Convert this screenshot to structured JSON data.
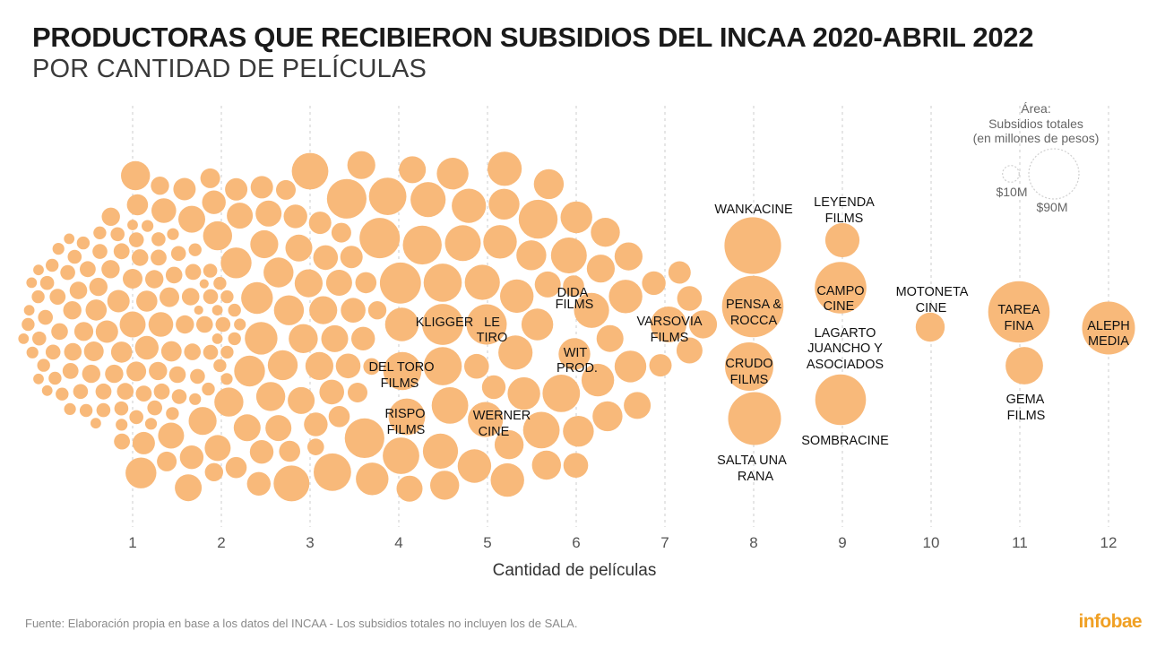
{
  "header": {
    "title": "PRODUCTORAS QUE RECIBIERON SUBSIDIOS DEL INCAA 2020-ABRIL 2022",
    "subtitle": "POR CANTIDAD DE PELÍCULAS"
  },
  "footer": {
    "source": "Fuente: Elaboración propia en base a los datos del INCAA - Los subsidios totales no incluyen los de SALA.",
    "brand": "infobae"
  },
  "colors": {
    "bubble": "#f8b97a",
    "grid": "#cccccc",
    "legend": "#cfcfcf"
  },
  "legend": {
    "title_lines": [
      "Área:",
      "Subsidios totales",
      "(en millones de pesos)"
    ],
    "items": [
      {
        "label": "$10M",
        "value": 10
      },
      {
        "label": "$90M",
        "value": 90
      }
    ]
  },
  "chart_data": {
    "type": "bubble-swarm",
    "xlabel": "Cantidad de películas",
    "x_ticks": [
      1,
      2,
      3,
      4,
      5,
      6,
      7,
      8,
      9,
      10,
      11,
      12
    ],
    "size_measure": "Subsidios totales (en millones de pesos)",
    "named_producers": [
      {
        "name": "KLIGGER",
        "films": 4,
        "subsidy_m": 60
      },
      {
        "name": "DEL TORO FILMS",
        "films": 4,
        "subsidy_m": 52
      },
      {
        "name": "RISPO FILMS",
        "films": 4,
        "subsidy_m": 48
      },
      {
        "name": "LE TIRO",
        "films": 5,
        "subsidy_m": 58
      },
      {
        "name": "WERNER CINE",
        "films": 5,
        "subsidy_m": 20
      },
      {
        "name": "DIDA FILMS",
        "films": 6,
        "subsidy_m": 16
      },
      {
        "name": "WIT PROD.",
        "films": 6,
        "subsidy_m": 36
      },
      {
        "name": "VARSOVIA FILMS",
        "films": 7,
        "subsidy_m": 46
      },
      {
        "name": "WANKACINE",
        "films": 8,
        "subsidy_m": 115
      },
      {
        "name": "PENSA & ROCCA",
        "films": 8,
        "subsidy_m": 135
      },
      {
        "name": "CRUDO FILMS",
        "films": 8,
        "subsidy_m": 84
      },
      {
        "name": "SALTA UNA RANA",
        "films": 8,
        "subsidy_m": 100
      },
      {
        "name": "LEYENDA FILMS",
        "films": 9,
        "subsidy_m": 42
      },
      {
        "name": "CAMPO CINE",
        "films": 9,
        "subsidy_m": 95
      },
      {
        "name": "LAGARTO JUANCHO Y ASOCIADOS",
        "films": 9,
        "subsidy_m": 0
      },
      {
        "name": "SOMBRACINE",
        "films": 9,
        "subsidy_m": 92
      },
      {
        "name": "MOTONETA CINE",
        "films": 10,
        "subsidy_m": 30
      },
      {
        "name": "TAREA FINA",
        "films": 11,
        "subsidy_m": 135
      },
      {
        "name": "GEMA FILMS",
        "films": 11,
        "subsidy_m": 50
      },
      {
        "name": "ALEPH MEDIA",
        "films": 12,
        "subsidy_m": 100
      }
    ],
    "swarm_bubbles": [
      {
        "films": 1,
        "subsidy_m": [
          8,
          4,
          4,
          6,
          12,
          7,
          4,
          9,
          5,
          5,
          10,
          4,
          6,
          6,
          3,
          8,
          4,
          6,
          5,
          12,
          6,
          8,
          7,
          9,
          4,
          6,
          3,
          5,
          6,
          10,
          4,
          6,
          5,
          8,
          14,
          6,
          4,
          7,
          16,
          5,
          9,
          6,
          8,
          4,
          6,
          10,
          5,
          7,
          12,
          6,
          4,
          9,
          5,
          6,
          8,
          11,
          5,
          7,
          6,
          9,
          4,
          8,
          12,
          6,
          8,
          16,
          5,
          7,
          6,
          10,
          8,
          12,
          6,
          18,
          9,
          7,
          14,
          8,
          10,
          6,
          12,
          9,
          7,
          15,
          8,
          11,
          9,
          13,
          20,
          10,
          7,
          14,
          8,
          16,
          11,
          9,
          22,
          12,
          8,
          18,
          14,
          10,
          24,
          12
        ]
      },
      {
        "films": 2,
        "subsidy_m": [
          16,
          12,
          18,
          9,
          24,
          14,
          10,
          20,
          28,
          12,
          16,
          10,
          22,
          18,
          14,
          26,
          12,
          20,
          16,
          30,
          14,
          24,
          18,
          12,
          22,
          16,
          28,
          20,
          14,
          32,
          18,
          24,
          16,
          34,
          20,
          26,
          14,
          22,
          30,
          18,
          24,
          28,
          20,
          32,
          26,
          22,
          36,
          18,
          28,
          24,
          30,
          26,
          20,
          34,
          28,
          38,
          24,
          30,
          26,
          22,
          32
        ]
      },
      {
        "films": 3,
        "subsidy_m": [
          26,
          40,
          20,
          30,
          44,
          24,
          34,
          50,
          28,
          38,
          46,
          22,
          32,
          42,
          56,
          30,
          40,
          48,
          36,
          26,
          52,
          44,
          34,
          58,
          40,
          48,
          30,
          54,
          44,
          38,
          60,
          46,
          36,
          52,
          42,
          48,
          56,
          40,
          50,
          44
        ]
      },
      {
        "films": 4,
        "subsidy_m": [
          26,
          44,
          30,
          50,
          36,
          40,
          54,
          32,
          46,
          38,
          42,
          34,
          48,
          28
        ]
      },
      {
        "films": 5,
        "subsidy_m": [
          32,
          24,
          36,
          28,
          40,
          22,
          30,
          26
        ]
      },
      {
        "films": 6,
        "subsidy_m": [
          20,
          18
        ]
      },
      {
        "films": 7,
        "subsidy_m": [
          18,
          22,
          24,
          28
        ]
      }
    ]
  }
}
